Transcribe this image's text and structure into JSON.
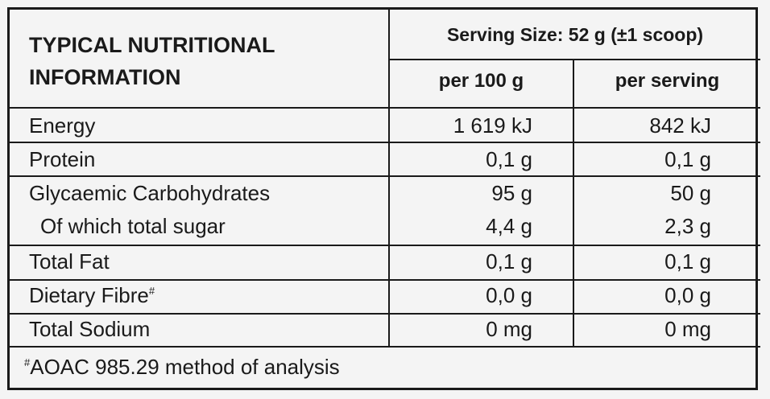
{
  "table": {
    "title_line1": "TYPICAL NUTRITIONAL",
    "title_line2": "INFORMATION",
    "serving_size": "Serving Size: 52 g (±1 scoop)",
    "col1_header": "per 100 g",
    "col2_header": "per serving",
    "rows": [
      {
        "label": "Energy",
        "per100": "1 619 kJ",
        "perServing": "842 kJ"
      },
      {
        "label": "Protein",
        "per100": "0,1 g",
        "perServing": "0,1 g"
      },
      {
        "label": "Glycaemic Carbohydrates",
        "per100": "95 g",
        "perServing": "50 g"
      },
      {
        "label": "Of which total sugar",
        "per100": "4,4 g",
        "perServing": "2,3 g"
      },
      {
        "label": "Total Fat",
        "per100": "0,1 g",
        "perServing": "0,1 g"
      },
      {
        "label": "Dietary Fibre",
        "label_mark": "#",
        "per100": "0,0 g",
        "perServing": "0,0 g"
      },
      {
        "label": "Total Sodium",
        "per100": "0 mg",
        "perServing": "0 mg"
      }
    ],
    "footnote_mark": "#",
    "footnote": "AOAC 985.29 method of analysis"
  }
}
